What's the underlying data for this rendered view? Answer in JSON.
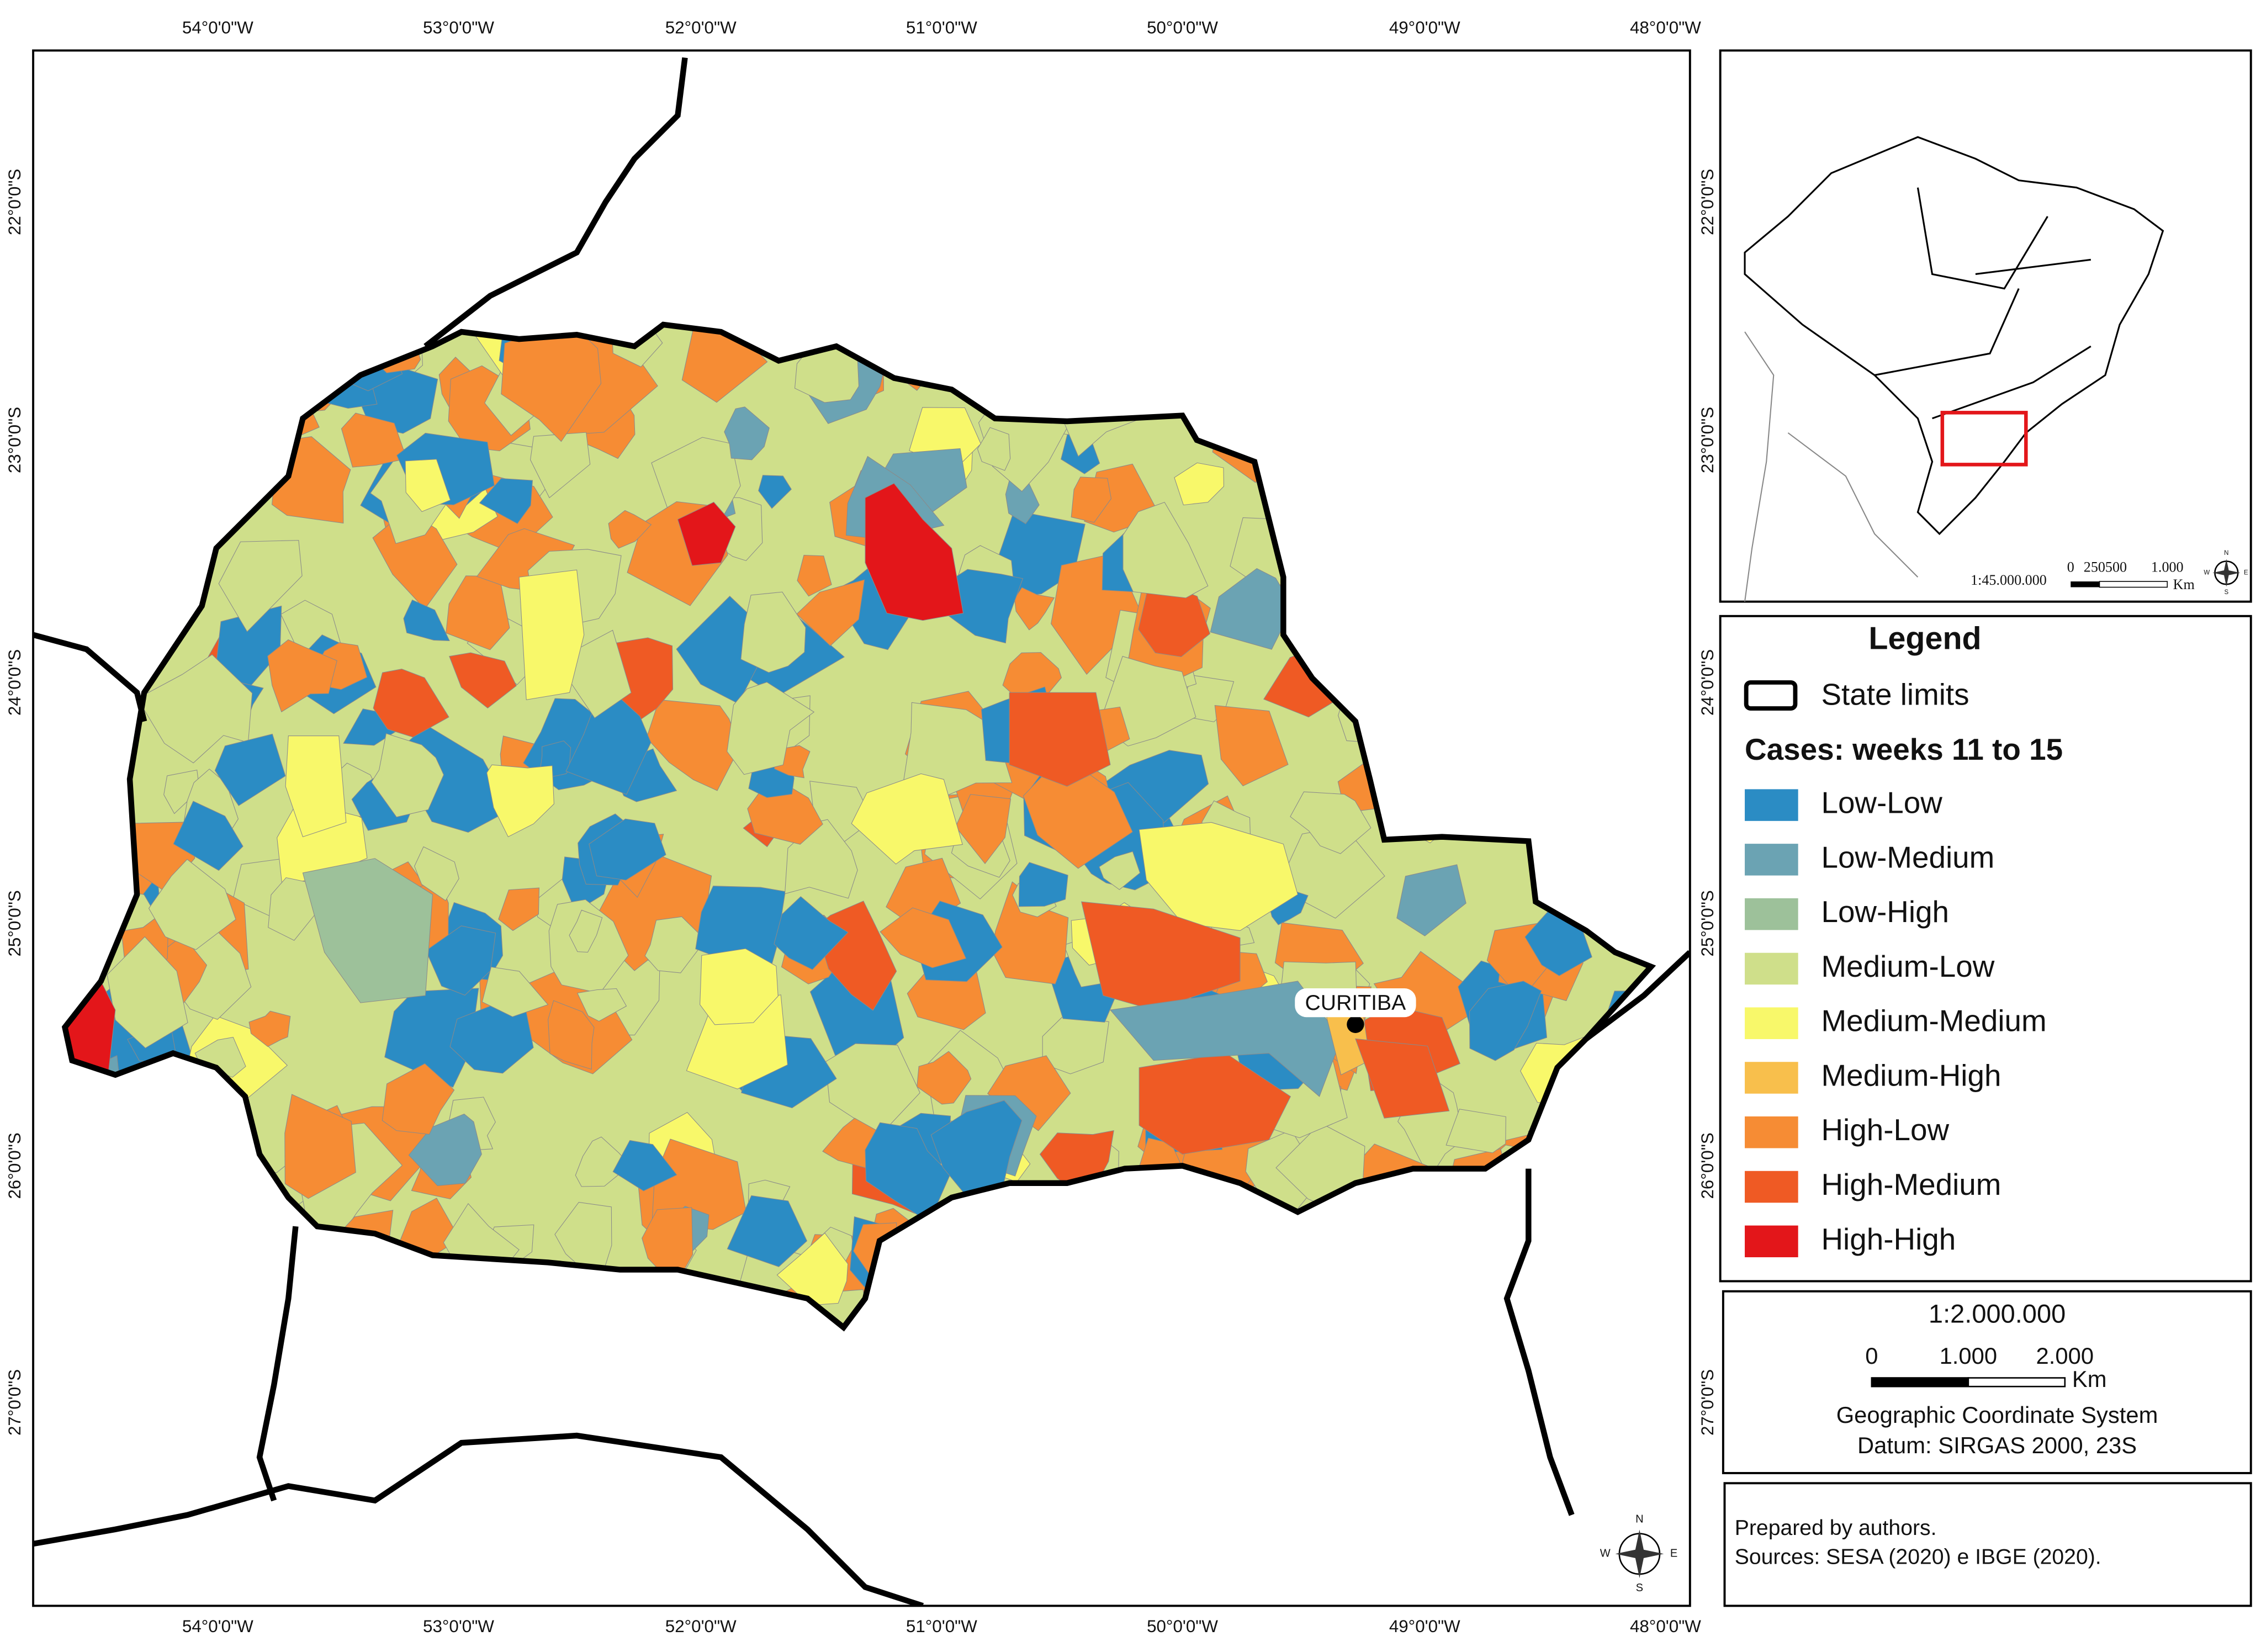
{
  "lon_labels": [
    "54°0'0\"W",
    "53°0'0\"W",
    "52°0'0\"W",
    "51°0'0\"W",
    "50°0'0\"W",
    "49°0'0\"W",
    "48°0'0\"W"
  ],
  "lat_labels": [
    "22°0'0\"S",
    "23°0'0\"S",
    "24°0'0\"S",
    "25°0'0\"S",
    "26°0'0\"S",
    "27°0'0\"S"
  ],
  "city": "CURITIBA",
  "inset": {
    "scale": "1:45.000.000",
    "scale_ticks": [
      "0",
      "250500",
      "1.000"
    ],
    "unit": "Km",
    "compass": [
      "N",
      "E",
      "S",
      "W"
    ]
  },
  "legend": {
    "title": "Legend",
    "state_limits": "State limits",
    "subtitle": "Cases: weeks 11 to 15",
    "items": [
      {
        "label": "Low-Low",
        "color": "#2b8cc4"
      },
      {
        "label": "Low-Medium",
        "color": "#6ba3b3"
      },
      {
        "label": "Low-High",
        "color": "#9dc19a"
      },
      {
        "label": "Medium-Low",
        "color": "#cfdf8a"
      },
      {
        "label": "Medium-Medium",
        "color": "#f8f86a"
      },
      {
        "label": "Medium-High",
        "color": "#f8bf4c"
      },
      {
        "label": "High-Low",
        "color": "#f68c34"
      },
      {
        "label": "High-Medium",
        "color": "#ef5a24"
      },
      {
        "label": "High-High",
        "color": "#e3161a"
      }
    ]
  },
  "scale_box": {
    "ratio": "1:2.000.000",
    "ticks": [
      "0",
      "1.000",
      "2.000"
    ],
    "unit": "Km",
    "lines": [
      "Geographic Coordinate System",
      "Datum: SIRGAS 2000, 23S"
    ]
  },
  "notes": [
    "Prepared by authors.",
    "Sources: SESA (2020) e IBGE (2020)."
  ],
  "compass": [
    "N",
    "E",
    "S",
    "W"
  ]
}
